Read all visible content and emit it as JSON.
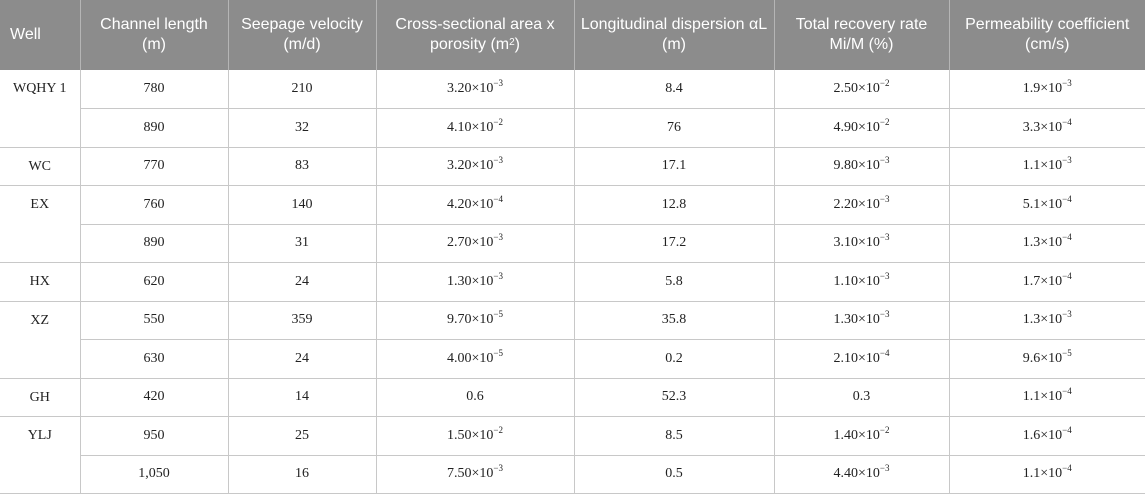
{
  "table": {
    "headers": [
      {
        "text": "Well",
        "sup": "",
        "after": ""
      },
      {
        "text": "Channel length (m)",
        "sup": "",
        "after": ""
      },
      {
        "text": "Seepage velocity (m/d)",
        "sup": "",
        "after": ""
      },
      {
        "text": "Cross-sectional area x porosity (m",
        "sup": "2",
        "after": ")"
      },
      {
        "text": "Longitudinal dispersion αL (m)",
        "sup": "",
        "after": ""
      },
      {
        "text": "Total recovery rate Mi/M (%)",
        "sup": "",
        "after": ""
      },
      {
        "text": "Permeability coefficient (cm/s)",
        "sup": "",
        "after": ""
      }
    ],
    "groups": [
      {
        "well": "WQHY 1",
        "rows": [
          {
            "length": "780",
            "velocity": "210",
            "area": {
              "m": "3.20×10",
              "e": "−3"
            },
            "dispersion": "8.4",
            "recovery": {
              "m": "2.50×10",
              "e": "−2"
            },
            "permeability": {
              "m": "1.9×10",
              "e": "−3"
            }
          },
          {
            "length": "890",
            "velocity": "32",
            "area": {
              "m": "4.10×10",
              "e": "−2"
            },
            "dispersion": "76",
            "recovery": {
              "m": "4.90×10",
              "e": "−2"
            },
            "permeability": {
              "m": "3.3×10",
              "e": "−4"
            }
          }
        ]
      },
      {
        "well": "WC",
        "rows": [
          {
            "length": "770",
            "velocity": "83",
            "area": {
              "m": "3.20×10",
              "e": "−3"
            },
            "dispersion": "17.1",
            "recovery": {
              "m": "9.80×10",
              "e": "−3"
            },
            "permeability": {
              "m": "1.1×10",
              "e": "−3"
            }
          }
        ]
      },
      {
        "well": "EX",
        "rows": [
          {
            "length": "760",
            "velocity": "140",
            "area": {
              "m": "4.20×10",
              "e": "−4"
            },
            "dispersion": "12.8",
            "recovery": {
              "m": "2.20×10",
              "e": "−3"
            },
            "permeability": {
              "m": "5.1×10",
              "e": "−4"
            }
          },
          {
            "length": "890",
            "velocity": "31",
            "area": {
              "m": "2.70×10",
              "e": "−3"
            },
            "dispersion": "17.2",
            "recovery": {
              "m": "3.10×10",
              "e": "−3"
            },
            "permeability": {
              "m": "1.3×10",
              "e": "−4"
            }
          }
        ]
      },
      {
        "well": "HX",
        "rows": [
          {
            "length": "620",
            "velocity": "24",
            "area": {
              "m": "1.30×10",
              "e": "−3"
            },
            "dispersion": "5.8",
            "recovery": {
              "m": "1.10×10",
              "e": "−3"
            },
            "permeability": {
              "m": "1.7×10",
              "e": "−4"
            }
          }
        ]
      },
      {
        "well": "XZ",
        "rows": [
          {
            "length": "550",
            "velocity": "359",
            "area": {
              "m": "9.70×10",
              "e": "−5"
            },
            "dispersion": "35.8",
            "recovery": {
              "m": "1.30×10",
              "e": "−3"
            },
            "permeability": {
              "m": "1.3×10",
              "e": "−3"
            }
          },
          {
            "length": "630",
            "velocity": "24",
            "area": {
              "m": "4.00×10",
              "e": "−5"
            },
            "dispersion": "0.2",
            "recovery": {
              "m": "2.10×10",
              "e": "−4"
            },
            "permeability": {
              "m": "9.6×10",
              "e": "−5"
            }
          }
        ]
      },
      {
        "well": "GH",
        "rows": [
          {
            "length": "420",
            "velocity": "14",
            "area": {
              "m": "0.6",
              "e": ""
            },
            "dispersion": "52.3",
            "recovery": {
              "m": "0.3",
              "e": ""
            },
            "permeability": {
              "m": "1.1×10",
              "e": "−4"
            }
          }
        ]
      },
      {
        "well": "YLJ",
        "rows": [
          {
            "length": "950",
            "velocity": "25",
            "area": {
              "m": "1.50×10",
              "e": "−2"
            },
            "dispersion": "8.5",
            "recovery": {
              "m": "1.40×10",
              "e": "−2"
            },
            "permeability": {
              "m": "1.6×10",
              "e": "−4"
            }
          },
          {
            "length": "1,050",
            "velocity": "16",
            "area": {
              "m": "7.50×10",
              "e": "−3"
            },
            "dispersion": "0.5",
            "recovery": {
              "m": "4.40×10",
              "e": "−3"
            },
            "permeability": {
              "m": "1.1×10",
              "e": "−4"
            }
          }
        ]
      }
    ]
  }
}
